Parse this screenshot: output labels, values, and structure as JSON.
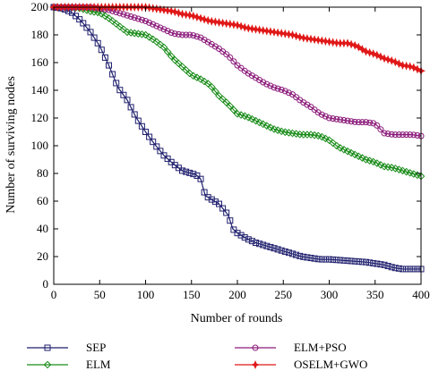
{
  "chart_data": {
    "type": "line",
    "xlabel": "Number of rounds",
    "ylabel": "Number of surviving nodes",
    "xlim": [
      0,
      400
    ],
    "ylim": [
      0,
      200
    ],
    "xticks": [
      0,
      50,
      100,
      150,
      200,
      250,
      300,
      350,
      400
    ],
    "yticks": [
      0,
      20,
      40,
      60,
      80,
      100,
      120,
      140,
      160,
      180,
      200
    ],
    "grid": false,
    "legend_position": "bottom",
    "series": [
      {
        "name": "SEP",
        "color": "#1f1f6e",
        "marker": "square",
        "x": [
          0,
          10,
          20,
          30,
          40,
          50,
          60,
          70,
          80,
          90,
          100,
          110,
          120,
          130,
          140,
          150,
          155,
          160,
          165,
          170,
          180,
          190,
          195,
          200,
          210,
          220,
          230,
          240,
          250,
          260,
          270,
          280,
          290,
          300,
          320,
          340,
          350,
          360,
          370,
          380,
          390,
          400
        ],
        "y": [
          200,
          199,
          196,
          190,
          182,
          172,
          158,
          142,
          133,
          120,
          110,
          101,
          93,
          87,
          82,
          80,
          79,
          76,
          64,
          62,
          58,
          50,
          40,
          37,
          33,
          30,
          28,
          26,
          24,
          22,
          20,
          19,
          18,
          18,
          17,
          16,
          15,
          14,
          12,
          11,
          11,
          11
        ]
      },
      {
        "name": "ELM",
        "color": "#1a8c1a",
        "marker": "diamond",
        "x": [
          0,
          10,
          20,
          30,
          40,
          50,
          60,
          70,
          80,
          90,
          100,
          110,
          120,
          130,
          140,
          150,
          160,
          170,
          180,
          190,
          200,
          210,
          220,
          230,
          240,
          250,
          260,
          270,
          280,
          290,
          300,
          310,
          320,
          330,
          340,
          350,
          360,
          370,
          380,
          390,
          400
        ],
        "y": [
          200,
          200,
          200,
          199,
          197,
          196,
          192,
          187,
          182,
          181,
          180,
          176,
          171,
          163,
          157,
          151,
          148,
          144,
          136,
          130,
          123,
          121,
          118,
          115,
          112,
          110,
          109,
          108,
          108,
          107,
          104,
          99,
          96,
          93,
          90,
          88,
          85,
          84,
          82,
          80,
          78
        ]
      },
      {
        "name": "ELM+PSO",
        "color": "#8b1a7a",
        "marker": "circle",
        "x": [
          0,
          10,
          20,
          30,
          40,
          50,
          60,
          70,
          80,
          90,
          100,
          110,
          120,
          130,
          140,
          150,
          160,
          170,
          180,
          190,
          200,
          210,
          220,
          230,
          240,
          250,
          260,
          270,
          280,
          290,
          300,
          310,
          320,
          330,
          340,
          350,
          360,
          370,
          380,
          390,
          400
        ],
        "y": [
          200,
          200,
          200,
          200,
          200,
          199,
          198,
          196,
          194,
          192,
          190,
          187,
          184,
          181,
          180,
          180,
          178,
          174,
          170,
          165,
          158,
          153,
          149,
          145,
          142,
          140,
          137,
          132,
          128,
          123,
          120,
          119,
          118,
          117,
          117,
          116,
          109,
          108,
          108,
          108,
          107
        ]
      },
      {
        "name": "OSELM+GWO",
        "color": "#e01818",
        "marker": "star",
        "x": [
          0,
          10,
          20,
          30,
          40,
          50,
          60,
          70,
          80,
          90,
          100,
          110,
          120,
          130,
          140,
          150,
          160,
          170,
          180,
          190,
          200,
          210,
          220,
          230,
          240,
          250,
          260,
          270,
          280,
          290,
          300,
          310,
          320,
          330,
          340,
          350,
          360,
          370,
          380,
          390,
          400
        ],
        "y": [
          200,
          200,
          200,
          200,
          200,
          200,
          200,
          200,
          200,
          200,
          200,
          199,
          198,
          197,
          195,
          194,
          192,
          190,
          189,
          188,
          187,
          185,
          184,
          183,
          182,
          181,
          180,
          178,
          177,
          176,
          175,
          174,
          174,
          172,
          168,
          166,
          163,
          161,
          158,
          157,
          154
        ]
      }
    ]
  }
}
